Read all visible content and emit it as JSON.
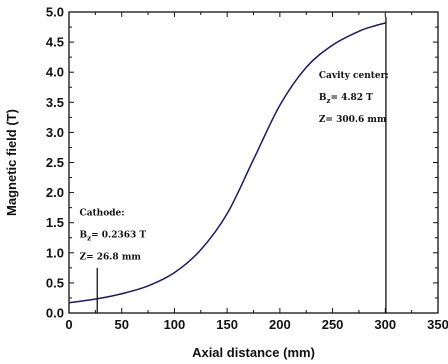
{
  "chart_data": {
    "type": "line",
    "xlabel": "Axial distance (mm)",
    "ylabel": "Magnetic field (T)",
    "xlim": [
      0,
      350
    ],
    "ylim": [
      0,
      5.0
    ],
    "x_ticks": [
      0,
      50,
      100,
      150,
      200,
      250,
      300,
      350
    ],
    "y_ticks": [
      0.0,
      0.5,
      1.0,
      1.5,
      2.0,
      2.5,
      3.0,
      3.5,
      4.0,
      4.5,
      5.0
    ],
    "x_tick_labels": [
      "0",
      "50",
      "100",
      "150",
      "200",
      "250",
      "300",
      "350"
    ],
    "y_tick_labels": [
      "0.0",
      "0.5",
      "1.0",
      "1.5",
      "2.0",
      "2.5",
      "3.0",
      "3.5",
      "4.0",
      "4.5",
      "5.0"
    ],
    "grid": false,
    "line_color": "#1a1a6e",
    "series": [
      {
        "x": [
          0,
          26.8,
          50,
          75,
          100,
          125,
          150,
          175,
          200,
          225,
          250,
          275,
          290,
          300.6
        ],
        "y": [
          0.17,
          0.2363,
          0.32,
          0.45,
          0.67,
          1.05,
          1.65,
          2.55,
          3.45,
          4.08,
          4.45,
          4.68,
          4.77,
          4.82
        ]
      }
    ],
    "annotations": [
      {
        "title": "Cathode:",
        "field_prefix": "B",
        "field_sub": "z",
        "field_value": "= 0.2363 T",
        "z_text": "Z= 26.8 mm",
        "marker_x": 26.8,
        "marker_y_from": 0.0,
        "marker_y_to": 0.75,
        "text_x": 10,
        "text_y_top": 1.62
      },
      {
        "title": "Cavity center:",
        "field_prefix": "B",
        "field_sub": "z",
        "field_value": "= 4.82 T",
        "z_text": "Z= 300.6 mm",
        "marker_x": 300.6,
        "marker_y_from": 0.0,
        "marker_y_to": 4.92,
        "text_x": 237,
        "text_y_top": 3.9
      }
    ]
  }
}
